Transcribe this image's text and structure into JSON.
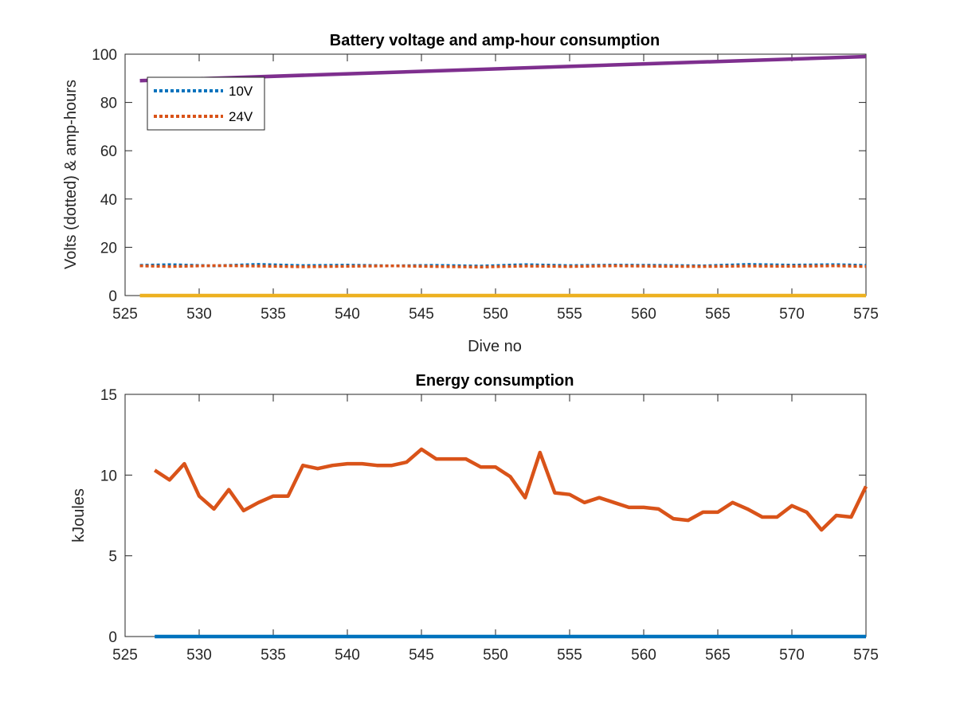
{
  "chart_data": [
    {
      "type": "line",
      "title": "Battery voltage and amp-hour consumption",
      "xlabel": "Dive no",
      "ylabel": "Volts (dotted) & amp-hours",
      "xlim": [
        525,
        575
      ],
      "ylim": [
        0,
        100
      ],
      "xticks": [
        525,
        530,
        535,
        540,
        545,
        550,
        555,
        560,
        565,
        570,
        575
      ],
      "yticks": [
        0,
        20,
        40,
        60,
        80,
        100
      ],
      "grid": false,
      "legend_position": "top-left",
      "series": [
        {
          "name": "10V",
          "style": "dotted",
          "color": "#0072BD",
          "x": [
            526,
            528,
            531,
            534,
            537,
            540,
            543,
            546,
            549,
            552,
            555,
            558,
            561,
            564,
            567,
            570,
            573,
            575
          ],
          "y": [
            12.5,
            12.8,
            12.3,
            12.9,
            12.4,
            12.6,
            12.3,
            12.5,
            12.2,
            12.8,
            12.4,
            12.6,
            12.5,
            12.3,
            12.9,
            12.6,
            12.8,
            12.5
          ]
        },
        {
          "name": "24V",
          "style": "dotted",
          "color": "#D95319",
          "x": [
            526,
            528,
            531,
            534,
            537,
            540,
            543,
            546,
            549,
            552,
            555,
            558,
            561,
            564,
            567,
            570,
            573,
            575
          ],
          "y": [
            12.3,
            12.0,
            12.4,
            12.2,
            11.9,
            12.1,
            12.3,
            12.0,
            11.8,
            12.2,
            12.0,
            12.3,
            12.1,
            12.0,
            12.2,
            12.1,
            12.3,
            12.0
          ]
        },
        {
          "style": "solid",
          "color": "#7E2F8E",
          "x": [
            526,
            575
          ],
          "y": [
            89,
            99
          ]
        },
        {
          "style": "solid",
          "color": "#EDB120",
          "x": [
            526,
            575
          ],
          "y": [
            0,
            0
          ]
        }
      ]
    },
    {
      "type": "line",
      "title": "Energy consumption",
      "xlabel": "",
      "ylabel": "kJoules",
      "xlim": [
        525,
        575
      ],
      "ylim": [
        0,
        15
      ],
      "xticks": [
        525,
        530,
        535,
        540,
        545,
        550,
        555,
        560,
        565,
        570,
        575
      ],
      "yticks": [
        0,
        5,
        10,
        15
      ],
      "grid": false,
      "series": [
        {
          "style": "solid",
          "color": "#0072BD",
          "x": [
            527,
            575
          ],
          "y": [
            0,
            0
          ]
        },
        {
          "style": "solid",
          "color": "#D95319",
          "x": [
            527,
            528,
            529,
            530,
            531,
            532,
            533,
            534,
            535,
            536,
            537,
            538,
            539,
            540,
            541,
            542,
            543,
            544,
            545,
            546,
            547,
            548,
            549,
            550,
            551,
            552,
            553,
            554,
            555,
            556,
            557,
            558,
            559,
            560,
            561,
            562,
            563,
            564,
            565,
            566,
            567,
            568,
            569,
            570,
            571,
            572,
            573,
            574,
            575
          ],
          "y": [
            10.3,
            9.7,
            10.7,
            8.7,
            7.9,
            9.1,
            7.8,
            8.3,
            8.7,
            8.7,
            10.6,
            10.4,
            10.6,
            10.7,
            10.7,
            10.6,
            10.6,
            10.8,
            11.6,
            11.0,
            11.0,
            11.0,
            10.5,
            10.5,
            9.9,
            8.6,
            11.4,
            8.9,
            8.8,
            8.3,
            8.6,
            8.3,
            8.0,
            8.0,
            7.9,
            7.3,
            7.2,
            7.7,
            7.7,
            8.3,
            7.9,
            7.4,
            7.4,
            8.1,
            7.7,
            6.6,
            7.5,
            7.4,
            9.3
          ]
        }
      ]
    }
  ]
}
